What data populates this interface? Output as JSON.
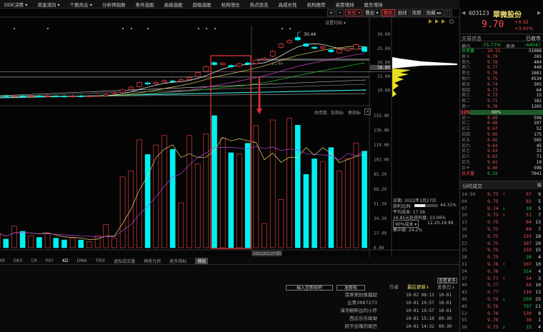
{
  "menu": [
    "DDE决策 ▾",
    "资金流向 ▾",
    "个股风云 ▾",
    "分析师指数",
    "条件选股",
    "高级选股",
    "超级选股",
    "机构增仓",
    "热点追击",
    "高成长性",
    "机构推荐",
    "高管增持",
    "股东增持"
  ],
  "toolbar": {
    "plus": "+",
    "minus": "−",
    "fuquan": "复权 ▾",
    "diejia": "叠加 ▾",
    "chouma": "筹码",
    "huaxian": "画线",
    "zhouqi": "周期",
    "yincang": "隐藏 ▸▸",
    "expand": "⛶"
  },
  "chart_labels": {
    "set_ma": "设置均线 ▾",
    "peak": "30.44",
    "ma_note": "21.44",
    "gaicanshu": "改参数",
    "jiazhibiao": "加指标",
    "huanzhibiao": "换指标",
    "close_box": "×",
    "date_tag": "2022/01/27/四"
  },
  "chart_data": [
    {
      "type": "candlestick",
      "price_axis": [
        "30.00",
        "25.00",
        "20.00",
        "15.00",
        "10.00"
      ],
      "highlight_price": "18.85",
      "ylim": [
        7.5,
        32
      ],
      "open": [
        7.8,
        8.1,
        7.9,
        8.1,
        7.9,
        8.0,
        7.9,
        8.0,
        7.95,
        7.85,
        8.0,
        7.9,
        8.0,
        8.1,
        8.8,
        9.4,
        10.4,
        11.4,
        12.7,
        12.4,
        13.0,
        13.4,
        13.3,
        13.9,
        15.0,
        16.8,
        19.9,
        19.2,
        18.9,
        18.6,
        19.8,
        19.6,
        21.0,
        22.2,
        25.4,
        27.0,
        28.9,
        26.6,
        25.4,
        25.1,
        24.4,
        23.4,
        24.2,
        24.7,
        25.5
      ],
      "close": [
        8.0,
        7.9,
        8.1,
        7.9,
        8.0,
        7.9,
        8.0,
        7.9,
        7.85,
        7.95,
        7.9,
        8.0,
        8.1,
        8.6,
        9.2,
        10.2,
        11.2,
        12.8,
        12.3,
        12.9,
        13.5,
        13.1,
        13.8,
        14.6,
        16.4,
        18.5,
        19.2,
        19.7,
        18.4,
        19.5,
        19.3,
        20.8,
        21.4,
        23.9,
        26.5,
        27.8,
        28.0,
        25.8,
        25.0,
        25.5,
        23.8,
        24.6,
        24.9,
        26.3,
        23.9
      ],
      "peak_high": 30.44
    },
    {
      "type": "bar",
      "yaxis": [
        "153.00",
        "136.00",
        "119.00",
        "102.00",
        "85.20",
        "68.20",
        "51.30",
        "34.30",
        "17.40",
        "0.00"
      ],
      "ylim": [
        0,
        153
      ],
      "values": [
        17,
        10,
        25,
        19,
        14,
        12,
        17,
        11,
        9,
        11,
        9,
        7,
        14,
        27,
        11,
        82,
        89,
        125,
        108,
        119,
        130,
        114,
        52,
        130,
        97,
        132,
        153,
        127,
        110,
        109,
        121,
        142,
        28,
        148,
        56,
        150,
        142,
        85,
        103,
        100,
        116,
        89,
        103,
        121,
        112
      ]
    }
  ],
  "chip_info": {
    "date": "日期: 2022年1月27日",
    "profit_label": "获利比例:",
    "profit_value": "44.31%",
    "profit_ratio": 0.4431,
    "avg_cost": "平均成本: 17.56",
    "profit_at": "16.85元处获利盘: 23.06%",
    "cost_select": "90%成本 ▾",
    "cost_range": "12.20-19.99",
    "concentration": "集中度: 24.2%"
  },
  "stock": {
    "code": "603123",
    "name": "翠微股份",
    "price": "9.70",
    "change": "+0.32",
    "change_pct": "+3.41%",
    "status_label": "交易状态",
    "status": "已收市",
    "weibi_label": "委比",
    "weibi": "-75.77%",
    "weicha_label": "委差",
    "weicha": "-44047"
  },
  "book": {
    "total_sell": {
      "label": "总卖量",
      "price": "10.15",
      "vol": "51088"
    },
    "asks": [
      {
        "l": "卖十",
        "p": "9.79",
        "v": "265"
      },
      {
        "l": "卖九",
        "p": "9.78",
        "v": "404"
      },
      {
        "l": "卖八",
        "p": "9.77",
        "v": "448"
      },
      {
        "l": "卖七",
        "p": "9.76",
        "v": "1681"
      },
      {
        "l": "卖六",
        "p": "9.75",
        "v": "4534"
      },
      {
        "l": "卖五",
        "p": "9.74",
        "v": "305"
      },
      {
        "l": "卖四",
        "p": "9.73",
        "v": "64"
      },
      {
        "l": "卖三",
        "p": "9.72",
        "v": "15"
      },
      {
        "l": "卖二",
        "p": "9.71",
        "v": "182"
      },
      {
        "l": "卖一",
        "p": "9.70",
        "v": "1205"
      }
    ],
    "ratio_left": "12%",
    "ratio_right": "88%",
    "ratio_buy": 0.12,
    "bids": [
      {
        "l": "买一",
        "p": "9.69",
        "v": "598"
      },
      {
        "l": "买二",
        "p": "9.68",
        "v": "297"
      },
      {
        "l": "买三",
        "p": "9.67",
        "v": "52"
      },
      {
        "l": "买四",
        "p": "9.66",
        "v": "175"
      },
      {
        "l": "买五",
        "p": "9.65",
        "v": "585"
      },
      {
        "l": "买六",
        "p": "9.64",
        "v": "45"
      },
      {
        "l": "买七",
        "p": "9.63",
        "v": "33"
      },
      {
        "l": "买八",
        "p": "9.62",
        "v": "71"
      },
      {
        "l": "买九",
        "p": "9.61",
        "v": "10"
      },
      {
        "l": "买十",
        "p": "9.60",
        "v": "598"
      }
    ],
    "total_buy": {
      "label": "总买量",
      "price": "9.33",
      "vol": "7041"
    }
  },
  "trades": {
    "title": "分时成交",
    "icon": "▦",
    "rows": [
      {
        "t": "14:56",
        "p": "9.75",
        "a": "up",
        "v": "97",
        "d": "r",
        "n": "9"
      },
      {
        "t": "04",
        "p": "9.75",
        "a": "",
        "v": "82",
        "d": "r",
        "n": "5"
      },
      {
        "t": "07",
        "p": "9.74",
        "a": "dn",
        "v": "18",
        "d": "g",
        "n": "5"
      },
      {
        "t": "10",
        "p": "9.75",
        "a": "up",
        "v": "51",
        "d": "r",
        "n": "7"
      },
      {
        "t": "13",
        "p": "9.75",
        "a": "",
        "v": "84",
        "d": "r",
        "n": "13"
      },
      {
        "t": "16",
        "p": "9.75",
        "a": "",
        "v": "84",
        "d": "r",
        "n": "7"
      },
      {
        "t": "19",
        "p": "9.75",
        "a": "",
        "v": "191",
        "d": "r",
        "n": "18"
      },
      {
        "t": "22",
        "p": "9.75",
        "a": "",
        "v": "107",
        "d": "r",
        "n": "20"
      },
      {
        "t": "25",
        "p": "9.75",
        "a": "",
        "v": "159",
        "d": "r",
        "n": "15"
      },
      {
        "t": "28",
        "p": "9.75",
        "a": "",
        "v": "26",
        "d": "g",
        "n": "4"
      },
      {
        "t": "31",
        "p": "9.76",
        "a": "up",
        "v": "107",
        "d": "r",
        "n": "10"
      },
      {
        "t": "34",
        "p": "9.76",
        "a": "",
        "v": "314",
        "d": "g",
        "n": "4"
      },
      {
        "t": "37",
        "p": "9.77",
        "a": "up",
        "v": "54",
        "d": "r",
        "n": "3"
      },
      {
        "t": "40",
        "p": "9.77",
        "a": "",
        "v": "64",
        "d": "r",
        "n": "10"
      },
      {
        "t": "43",
        "p": "9.77",
        "a": "",
        "v": "110",
        "d": "r",
        "n": "13"
      },
      {
        "t": "46",
        "p": "9.76",
        "a": "dn",
        "v": "250",
        "d": "g",
        "n": "25"
      },
      {
        "t": "49",
        "p": "9.76",
        "a": "",
        "v": "797",
        "d": "g",
        "n": "21"
      },
      {
        "t": "52",
        "p": "9.76",
        "a": "",
        "v": "130",
        "d": "r",
        "n": "8"
      },
      {
        "t": "55",
        "p": "9.76",
        "a": "",
        "v": "36",
        "d": "r",
        "n": "1"
      },
      {
        "t": "58",
        "p": "9.75",
        "a": "dn",
        "v": "22",
        "d": "g",
        "n": "4"
      }
    ]
  },
  "indicator_tabs": [
    "MI",
    "DKX",
    "CR",
    "PSY",
    "KD",
    "DMA",
    "TRIX",
    "虚拟成交量",
    "神奇九转",
    "更多指标",
    "模板"
  ],
  "forum": {
    "insert_btn": "插入至新帖吧",
    "post_btn": "发新帖",
    "more": "查看更多",
    "col_author": "作者",
    "col_updated": "最后更新↓",
    "col_posted": "发表日↓",
    "rows": [
      {
        "a": "翡翠来财勇蹦跶",
        "u": "10-02 08:12",
        "p": "10-01"
      },
      {
        "a": "云青3887273",
        "u": "10-01 19:57",
        "p": "10-01"
      },
      {
        "a": "漳河桐畔边的小乔",
        "u": "10-01 19:57",
        "p": "10-01"
      },
      {
        "a": "西瓜乐乐呦呦",
        "u": "10-01 15:10",
        "p": "09-30"
      },
      {
        "a": "抓不住嘴的尾巴",
        "u": "10-01 14:32",
        "p": "09-30"
      }
    ]
  },
  "colors": {
    "up": "#ff4444",
    "down": "#00f0f0",
    "ma5": "#ffffff",
    "ma10": "#e8d66a",
    "ma20": "#d040d0",
    "ma30": "#30c030",
    "accent": "#e03030"
  }
}
